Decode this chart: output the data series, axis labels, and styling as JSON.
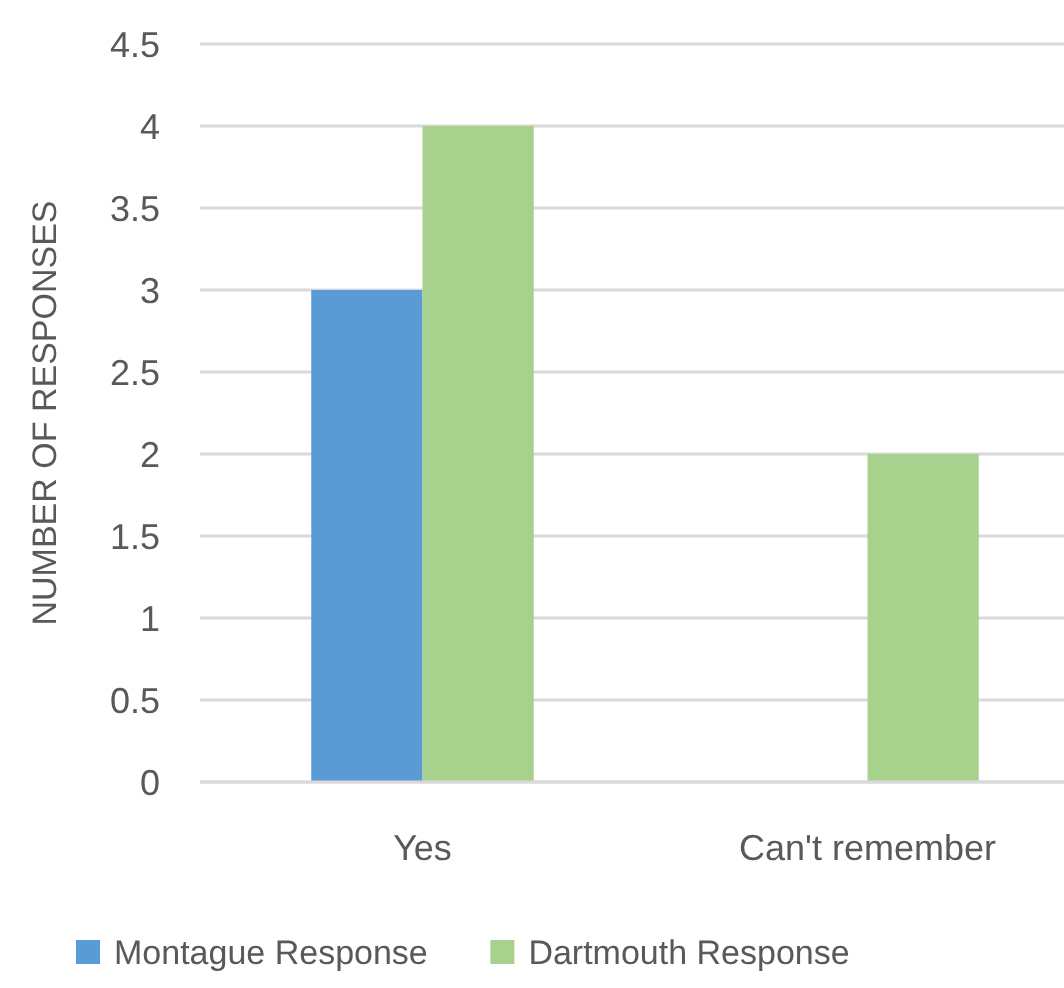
{
  "chart_data": {
    "type": "bar",
    "ylabel": "NUMBER OF RESPONSES",
    "categories": [
      "Yes",
      "Can't remember"
    ],
    "series": [
      {
        "name": "Montague Response",
        "color": "#5b9bd5",
        "values": [
          3,
          0
        ]
      },
      {
        "name": "Dartmouth Response",
        "color": "#a9d18e",
        "values": [
          4,
          2
        ]
      }
    ],
    "ylim": [
      0,
      4.5
    ],
    "yticks": [
      0,
      0.5,
      1,
      1.5,
      2,
      2.5,
      3,
      3.5,
      4,
      4.5
    ],
    "grid": "y",
    "legend": "bottom"
  }
}
